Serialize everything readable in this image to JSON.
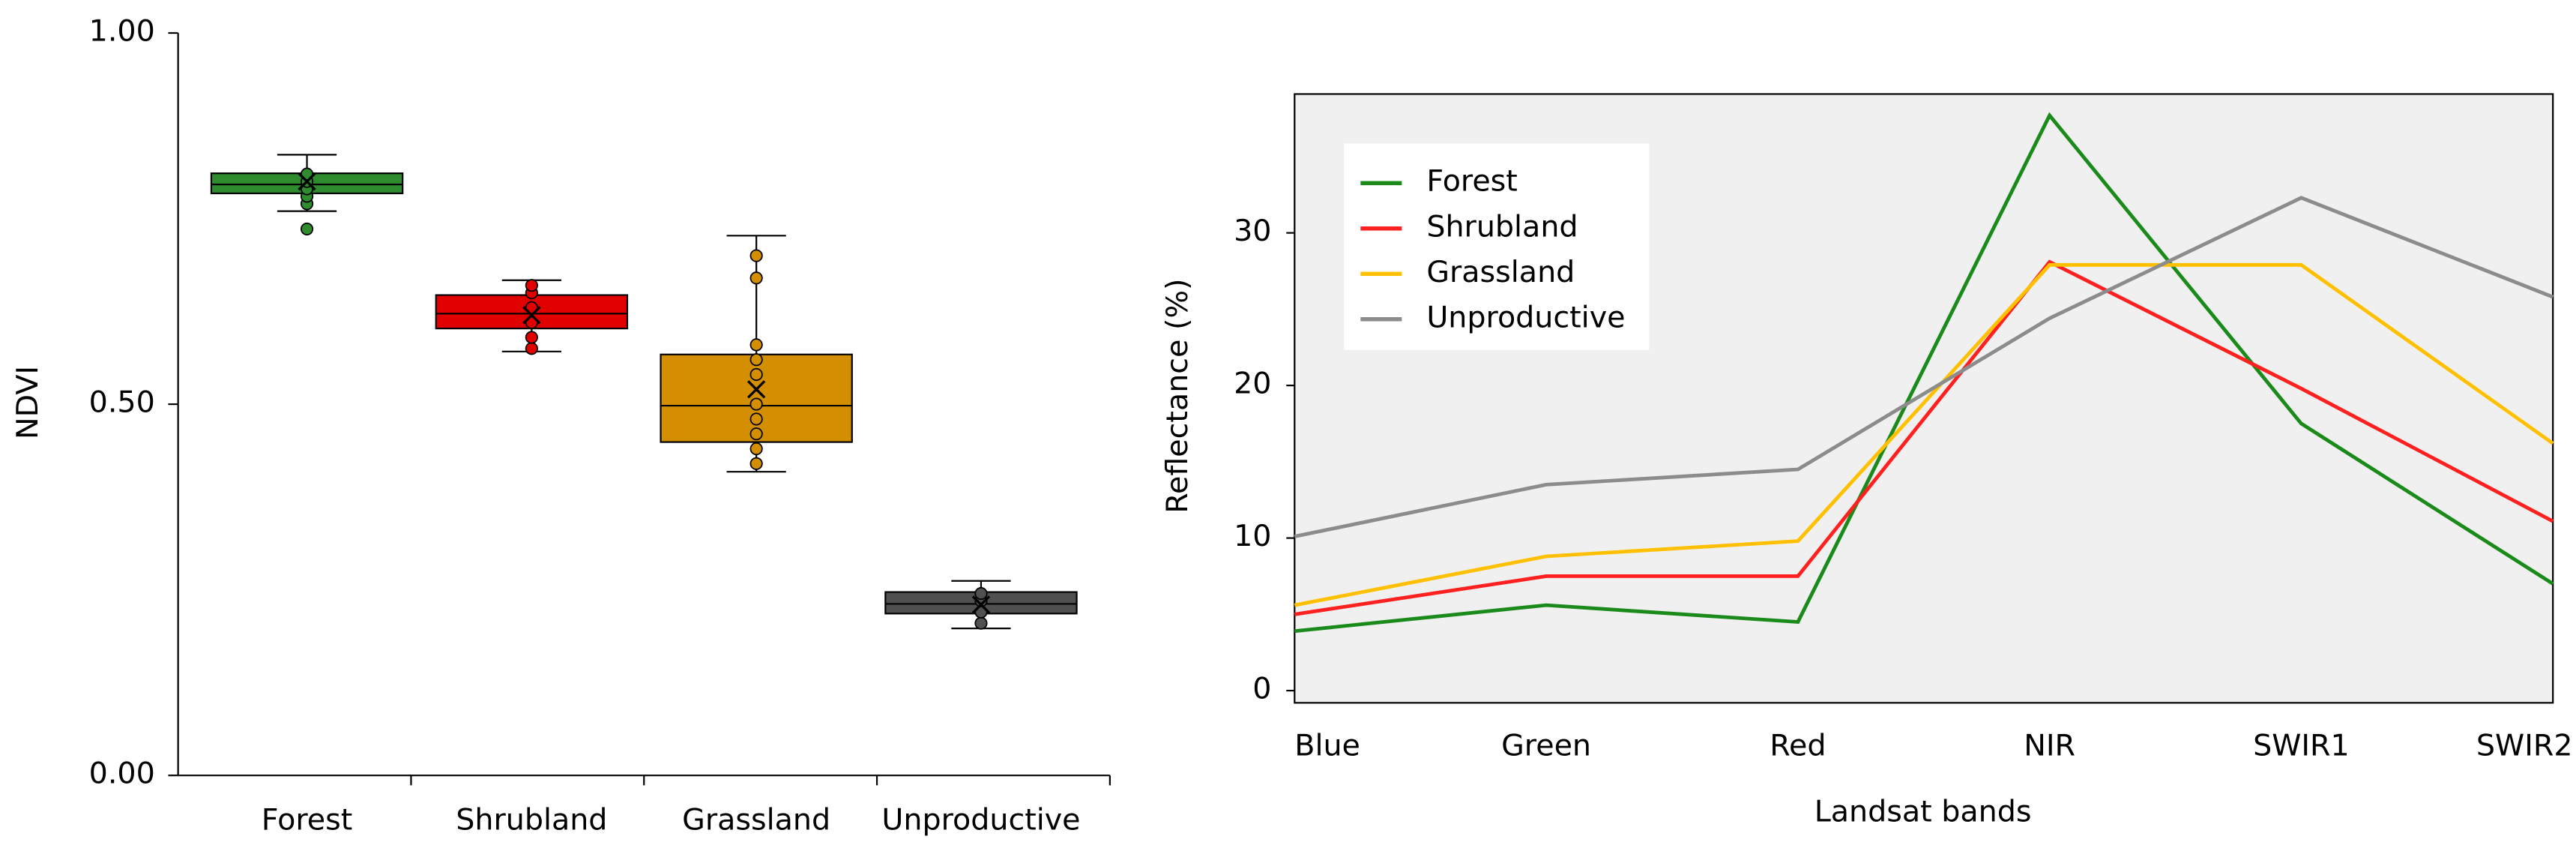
{
  "chart_data": [
    {
      "type": "box",
      "y_label": "NDVI",
      "categories": [
        "Forest",
        "Shrubland",
        "Grassland",
        "Unproductive"
      ],
      "colors": [
        "#2e8b2e",
        "#e00000",
        "#d48f00",
        "#505050"
      ],
      "ylim": [
        0,
        1
      ],
      "yticks": [
        {
          "value": 0,
          "label": "0.00"
        },
        {
          "value": 0.5,
          "label": "0.50"
        },
        {
          "value": 1,
          "label": "1.00"
        }
      ],
      "boxes": [
        {
          "min": 0.76,
          "q1": 0.784,
          "median": 0.796,
          "q3": 0.811,
          "max": 0.836,
          "mean": 0.8,
          "points": [
            0.736,
            0.77,
            0.78,
            0.79,
            0.8,
            0.81
          ]
        },
        {
          "min": 0.571,
          "q1": 0.602,
          "median": 0.622,
          "q3": 0.647,
          "max": 0.667,
          "mean": 0.62,
          "points": [
            0.575,
            0.59,
            0.61,
            0.63,
            0.65,
            0.66
          ]
        },
        {
          "min": 0.409,
          "q1": 0.449,
          "median": 0.498,
          "q3": 0.567,
          "max": 0.727,
          "mean": 0.52,
          "points": [
            0.42,
            0.44,
            0.46,
            0.48,
            0.5,
            0.54,
            0.56,
            0.58,
            0.67,
            0.7
          ]
        },
        {
          "min": 0.198,
          "q1": 0.218,
          "median": 0.231,
          "q3": 0.247,
          "max": 0.262,
          "mean": 0.23,
          "points": [
            0.205,
            0.22,
            0.235,
            0.245
          ]
        }
      ]
    },
    {
      "type": "line",
      "x_label": "Landsat bands",
      "y_label": "Reflectance (%)",
      "categories": [
        "Blue",
        "Green",
        "Red",
        "NIR",
        "SWIR1",
        "SWIR2"
      ],
      "ylim": [
        -0.8,
        39.1
      ],
      "yticks": [
        0,
        10,
        20,
        30
      ],
      "legend": "upper left",
      "series": [
        {
          "name": "Forest",
          "color": "#1a8a1a",
          "values": [
            3.9,
            5.6,
            4.5,
            37.7,
            17.5,
            7.0
          ]
        },
        {
          "name": "Shrubland",
          "color": "#ff2020",
          "values": [
            5.0,
            7.5,
            7.5,
            28.1,
            19.8,
            11.1
          ]
        },
        {
          "name": "Grassland",
          "color": "#ffc000",
          "values": [
            5.6,
            8.8,
            9.8,
            27.9,
            27.9,
            16.2
          ]
        },
        {
          "name": "Unproductive",
          "color": "#8c8c8c",
          "values": [
            10.1,
            13.5,
            14.5,
            24.4,
            32.3,
            25.8
          ]
        }
      ]
    }
  ]
}
